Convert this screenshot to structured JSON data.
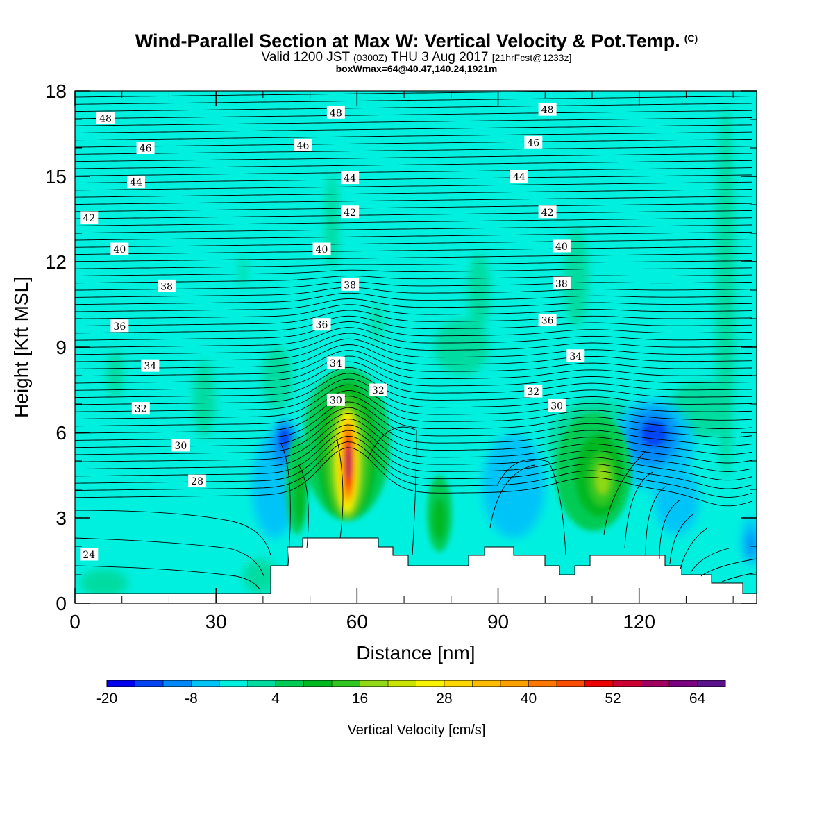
{
  "header": {
    "title_main": "Wind-Parallel Section at Max W: Vertical Velocity & Pot.Temp.",
    "title_sup": "(C)",
    "valid_a": "Valid 1200 JST",
    "valid_b": "(0300Z)",
    "valid_c": "THU 3 Aug 2017",
    "valid_d": "[21hrFcst@1233z]",
    "box_info": "boxWmax=64@40.47,140.24,1921m"
  },
  "chart_data": {
    "type": "heatmap",
    "xlabel": "Distance [nm]",
    "ylabel": "Height [Kft MSL]",
    "xlim": [
      0,
      145
    ],
    "ylim": [
      0,
      18
    ],
    "x_ticks": [
      "0",
      "30",
      "60",
      "90",
      "120"
    ],
    "x_tick_values": [
      0,
      30,
      60,
      90,
      120
    ],
    "y_ticks": [
      "0",
      "3",
      "6",
      "9",
      "12",
      "15",
      "18"
    ],
    "y_tick_values": [
      0,
      3,
      6,
      9,
      12,
      15,
      18
    ],
    "colorbar": {
      "label": "Vertical Velocity [cm/s]",
      "tick_labels": [
        "-20",
        "-8",
        "4",
        "16",
        "28",
        "40",
        "52",
        "64"
      ],
      "bin_edges_min": -20,
      "bin_width": 4,
      "colors": [
        "#0000ee",
        "#0044f4",
        "#0088f8",
        "#00c4f8",
        "#00f0e0",
        "#00dca0",
        "#00cc55",
        "#00b820",
        "#30c820",
        "#90d818",
        "#c8e400",
        "#f8f400",
        "#fcd800",
        "#fcbc00",
        "#fca000",
        "#fc7800",
        "#fc4c00",
        "#ee0000",
        "#cc0033",
        "#a00060",
        "#7a0080",
        "#5a108a"
      ]
    },
    "theta_labels": [
      {
        "value": "48",
        "x": 6.5,
        "y": 17.05
      },
      {
        "value": "48",
        "x": 55.5,
        "y": 17.25
      },
      {
        "value": "48",
        "x": 100.5,
        "y": 17.35
      },
      {
        "value": "46",
        "x": 15,
        "y": 16.0
      },
      {
        "value": "46",
        "x": 48.5,
        "y": 16.1
      },
      {
        "value": "46",
        "x": 97.5,
        "y": 16.2
      },
      {
        "value": "44",
        "x": 13,
        "y": 14.8
      },
      {
        "value": "44",
        "x": 58.5,
        "y": 14.95
      },
      {
        "value": "44",
        "x": 94.5,
        "y": 15.0
      },
      {
        "value": "42",
        "x": 3,
        "y": 13.55
      },
      {
        "value": "42",
        "x": 58.5,
        "y": 13.75
      },
      {
        "value": "42",
        "x": 100.5,
        "y": 13.75
      },
      {
        "value": "40",
        "x": 9.5,
        "y": 12.45
      },
      {
        "value": "40",
        "x": 52.5,
        "y": 12.45
      },
      {
        "value": "40",
        "x": 103.5,
        "y": 12.55
      },
      {
        "value": "38",
        "x": 19.5,
        "y": 11.15
      },
      {
        "value": "38",
        "x": 58.5,
        "y": 11.2
      },
      {
        "value": "38",
        "x": 103.5,
        "y": 11.25
      },
      {
        "value": "36",
        "x": 9.5,
        "y": 9.75
      },
      {
        "value": "36",
        "x": 52.5,
        "y": 9.8
      },
      {
        "value": "36",
        "x": 100.5,
        "y": 9.95
      },
      {
        "value": "34",
        "x": 16,
        "y": 8.35
      },
      {
        "value": "34",
        "x": 55.5,
        "y": 8.45
      },
      {
        "value": "34",
        "x": 106.5,
        "y": 8.7
      },
      {
        "value": "32",
        "x": 14,
        "y": 6.85
      },
      {
        "value": "32",
        "x": 64.5,
        "y": 7.5
      },
      {
        "value": "32",
        "x": 97.5,
        "y": 7.45
      },
      {
        "value": "30",
        "x": 22.5,
        "y": 5.55
      },
      {
        "value": "30",
        "x": 55.5,
        "y": 7.15
      },
      {
        "value": "30",
        "x": 102.5,
        "y": 6.95
      },
      {
        "value": "28",
        "x": 26,
        "y": 4.3
      },
      {
        "value": "24",
        "x": 3,
        "y": 1.72
      }
    ]
  }
}
